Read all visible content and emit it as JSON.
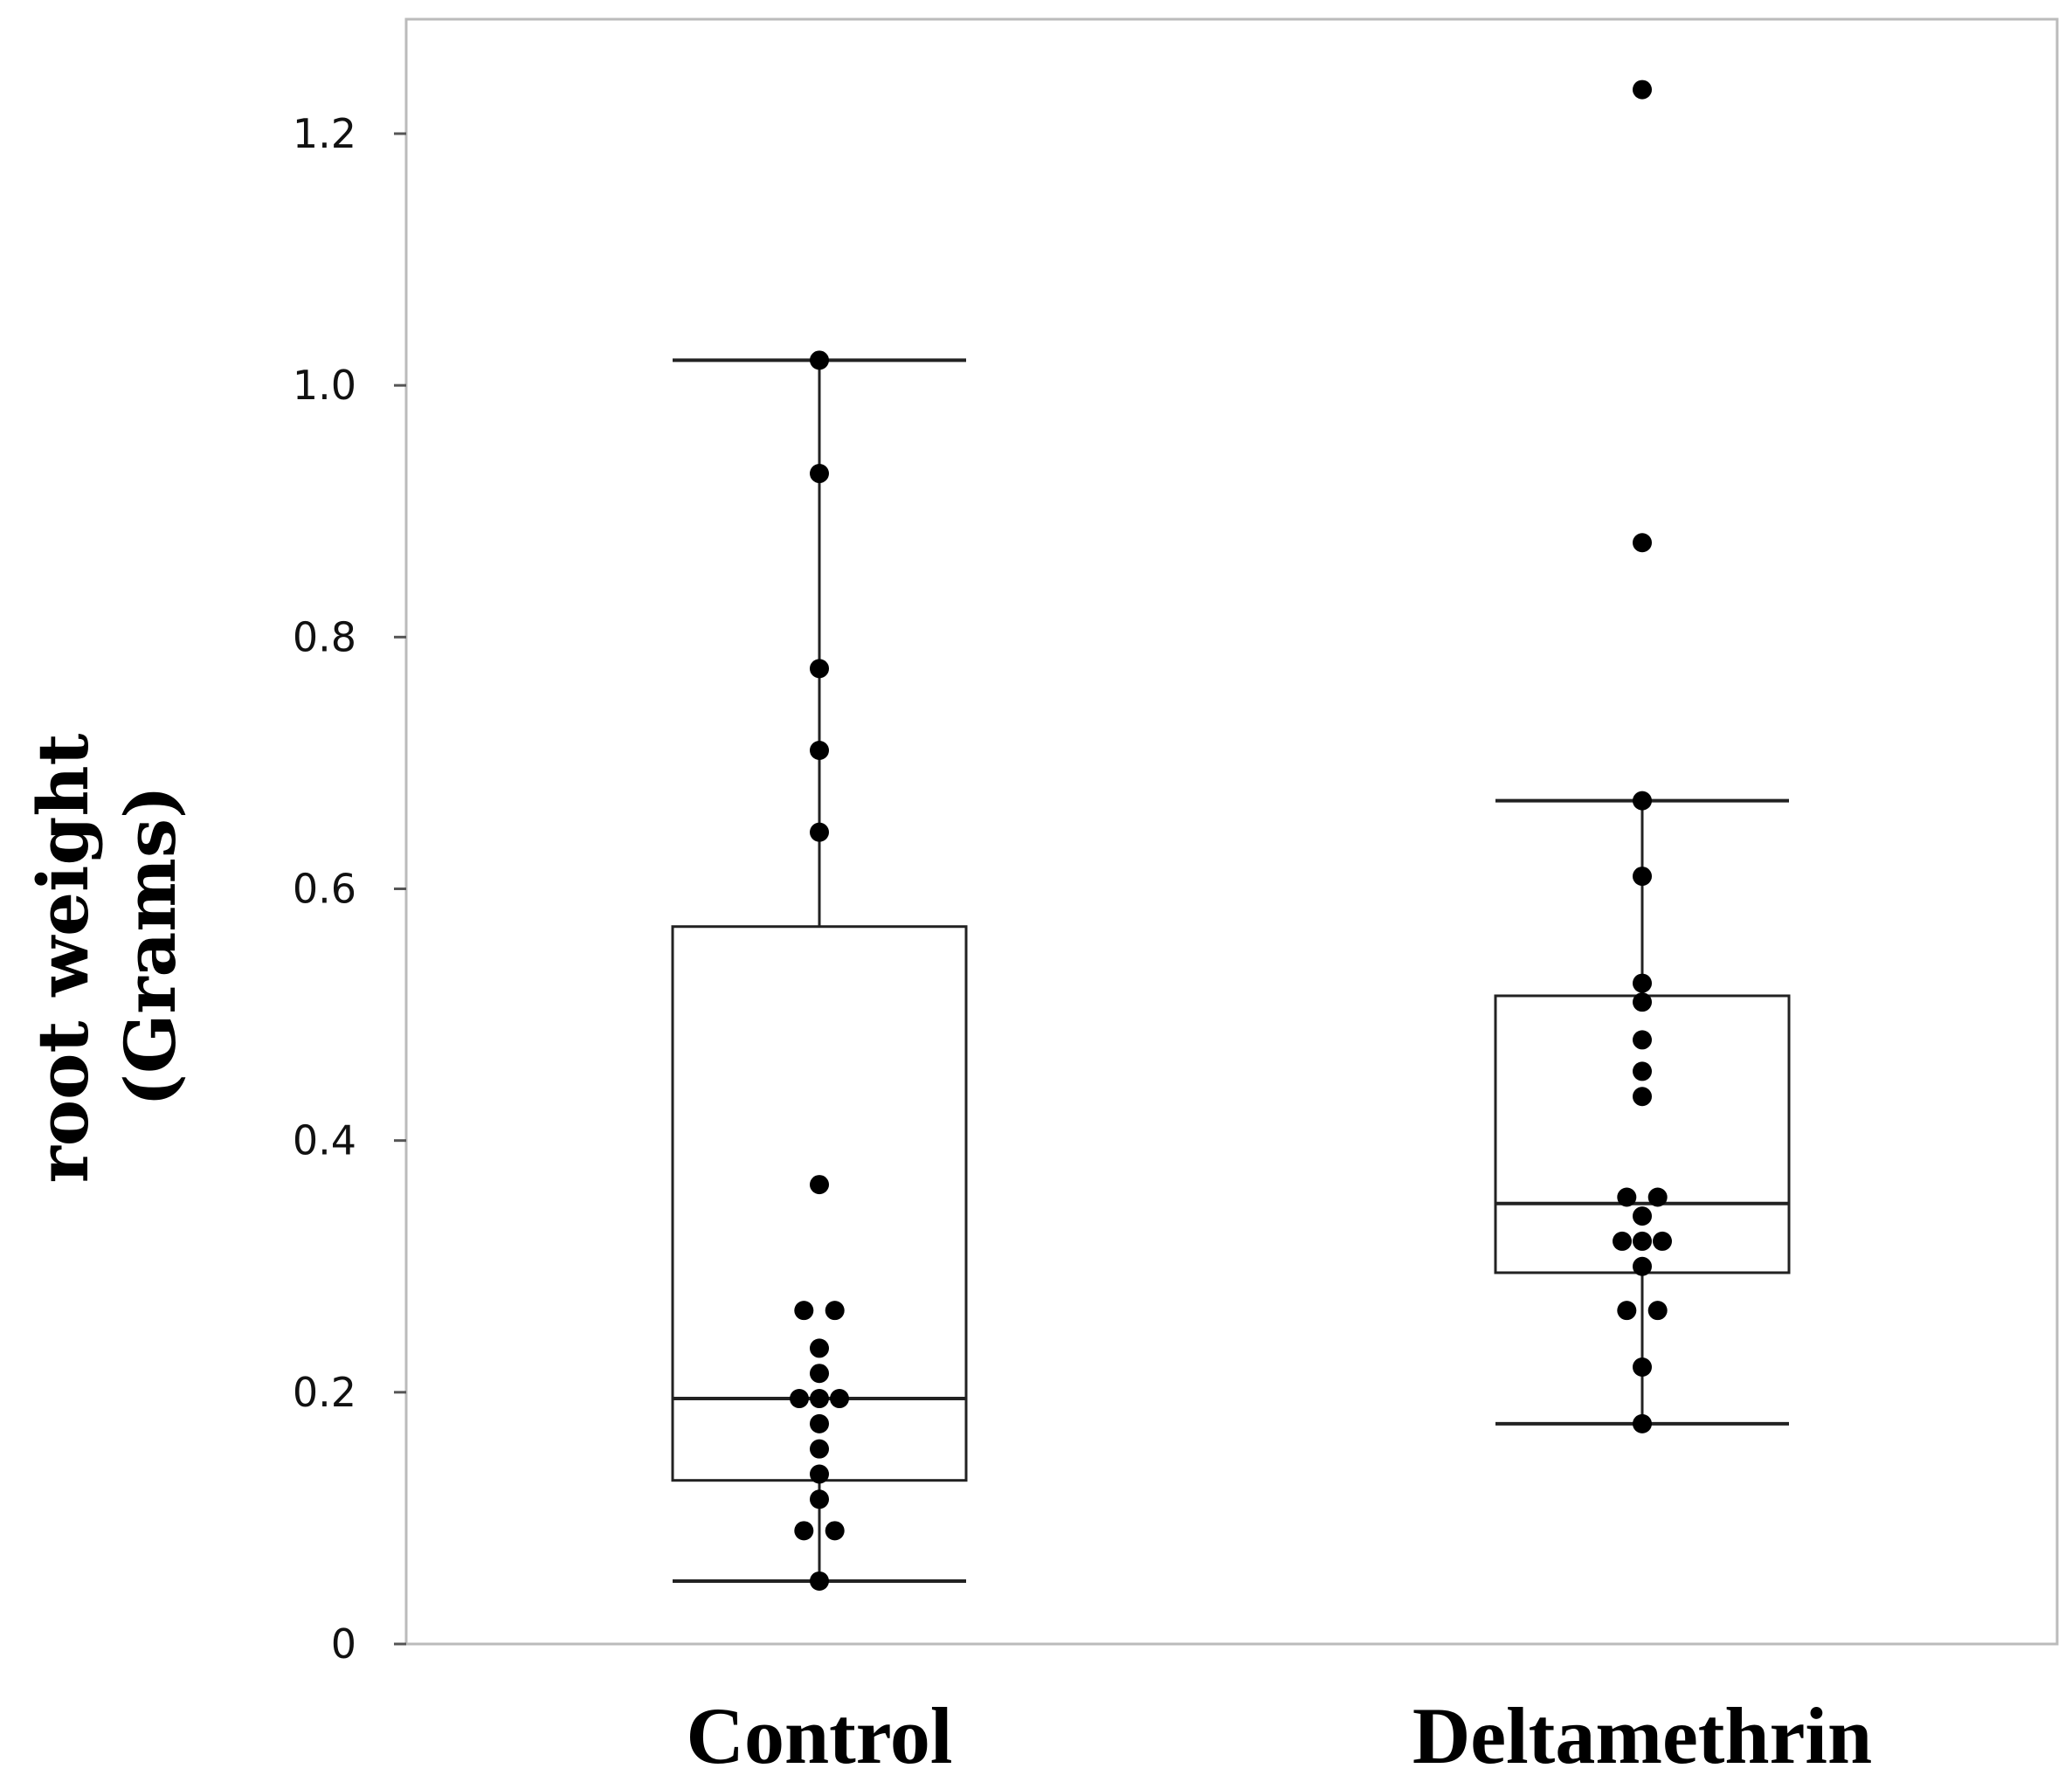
{
  "chart_data": {
    "type": "box",
    "title": "",
    "xlabel": "",
    "ylabel_lines": [
      "root weight",
      "(Grams)"
    ],
    "ylim": [
      0,
      1.3
    ],
    "yticks": [
      {
        "value": 0,
        "label": "0"
      },
      {
        "value": 0.2,
        "label": "0.2"
      },
      {
        "value": 0.4,
        "label": "0.4"
      },
      {
        "value": 0.6,
        "label": "0.6"
      },
      {
        "value": 0.8,
        "label": "0.8"
      },
      {
        "value": 1.0,
        "label": "1.0"
      },
      {
        "value": 1.2,
        "label": "1.2"
      }
    ],
    "grid": false,
    "colors": {
      "line": "#222222",
      "point": "#000000",
      "axis": "#bbbbbb"
    },
    "groups": [
      {
        "name": "Control",
        "whisker_low": 0.05,
        "q1": 0.13,
        "median": 0.195,
        "q3": 0.57,
        "whisker_high": 1.02,
        "points": [
          1.02,
          0.93,
          0.775,
          0.71,
          0.645,
          0.365,
          0.265,
          0.265,
          0.235,
          0.215,
          0.195,
          0.195,
          0.195,
          0.175,
          0.155,
          0.135,
          0.115,
          0.09,
          0.09,
          0.05
        ]
      },
      {
        "name": "Deltamethrin",
        "whisker_low": 0.175,
        "q1": 0.295,
        "median": 0.35,
        "q3": 0.515,
        "whisker_high": 0.67,
        "points": [
          1.235,
          0.875,
          0.67,
          0.61,
          0.525,
          0.51,
          0.48,
          0.455,
          0.435,
          0.355,
          0.355,
          0.34,
          0.32,
          0.32,
          0.32,
          0.3,
          0.265,
          0.265,
          0.22,
          0.175
        ]
      }
    ]
  }
}
